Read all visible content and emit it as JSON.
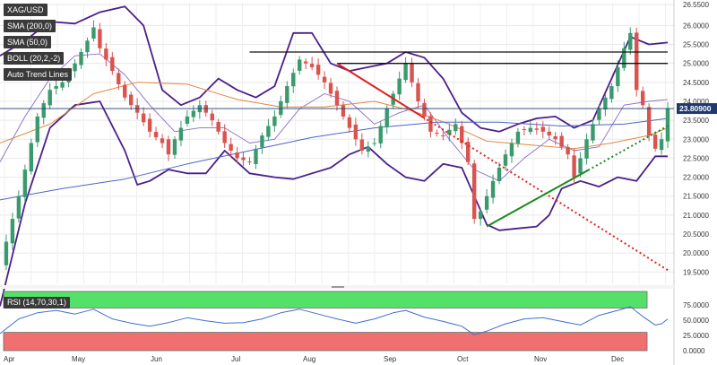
{
  "legend": {
    "symbol": "XAG/USD",
    "sma200": "SMA (200,0)",
    "sma50": "SMA (50,0)",
    "boll": "BOLL (20,2,-2)",
    "trend": "Auto Trend Lines"
  },
  "rsi": {
    "label": "RSI (14,70,30,1)"
  },
  "colors": {
    "up": "#3a9a6e",
    "down": "#d9534f",
    "boll": "#4b1f8a",
    "sma200": "#4b64c8",
    "sma50": "#e08a40",
    "rsi_line": "#3f6fd0",
    "rsi_overbought": "#55e06a",
    "rsi_oversold": "#f07070",
    "resistance": "#111111",
    "down_trend": "#e02020",
    "up_trend": "#1a8a1a",
    "price_badge": "#1f3a6e"
  },
  "chart_data": {
    "type": "line",
    "title": "XAG/USD",
    "x_ticks": [
      "Apr",
      "May",
      "Jun",
      "Jul",
      "Aug",
      "Sep",
      "Oct",
      "Nov",
      "Dec"
    ],
    "y_ticks": [
      "26.5500",
      "26.0000",
      "25.5000",
      "25.0000",
      "24.5000",
      "24.0000",
      "23.5000",
      "23.0000",
      "22.5000",
      "22.0000",
      "21.5000",
      "21.0000",
      "20.5000",
      "20.0000",
      "19.5000"
    ],
    "ylim": [
      19.2,
      26.6
    ],
    "last_price": "23.80900",
    "rsi_ticks": [
      "75.0000",
      "50.0000",
      "25.0000",
      "0.0000"
    ],
    "rsi_ylim": [
      0,
      100
    ],
    "rsi_levels": {
      "overbought": 70,
      "oversold": 30
    },
    "price_path": [
      [
        0,
        19.7
      ],
      [
        3,
        21.5
      ],
      [
        6,
        23.6
      ],
      [
        8,
        24.3
      ],
      [
        10,
        24.5
      ],
      [
        12,
        25.0
      ],
      [
        14,
        25.6
      ],
      [
        15,
        25.95
      ],
      [
        16,
        25.4
      ],
      [
        18,
        24.8
      ],
      [
        20,
        24.1
      ],
      [
        22,
        23.7
      ],
      [
        24,
        23.2
      ],
      [
        26,
        22.9
      ],
      [
        27,
        22.6
      ],
      [
        28,
        23.0
      ],
      [
        30,
        23.6
      ],
      [
        32,
        23.9
      ],
      [
        34,
        23.5
      ],
      [
        36,
        22.9
      ],
      [
        38,
        22.5
      ],
      [
        40,
        22.4
      ],
      [
        42,
        23.1
      ],
      [
        44,
        23.6
      ],
      [
        46,
        24.4
      ],
      [
        48,
        25.1
      ],
      [
        50,
        24.9
      ],
      [
        52,
        24.5
      ],
      [
        54,
        23.9
      ],
      [
        56,
        23.3
      ],
      [
        58,
        22.7
      ],
      [
        60,
        22.9
      ],
      [
        62,
        23.8
      ],
      [
        64,
        24.6
      ],
      [
        65,
        25.0
      ],
      [
        67,
        24.0
      ],
      [
        69,
        23.2
      ],
      [
        71,
        23.1
      ],
      [
        73,
        23.4
      ],
      [
        75,
        22.4
      ],
      [
        76,
        20.9
      ],
      [
        77,
        21.1
      ],
      [
        79,
        21.9
      ],
      [
        81,
        22.6
      ],
      [
        83,
        23.2
      ],
      [
        85,
        23.3
      ],
      [
        87,
        23.2
      ],
      [
        89,
        23.0
      ],
      [
        91,
        22.6
      ],
      [
        92,
        22.0
      ],
      [
        94,
        23.0
      ],
      [
        96,
        23.8
      ],
      [
        98,
        24.4
      ],
      [
        100,
        25.4
      ],
      [
        101,
        25.8
      ],
      [
        102,
        24.3
      ],
      [
        103,
        23.9
      ],
      [
        104,
        23.1
      ],
      [
        105,
        22.75
      ],
      [
        106,
        23.0
      ],
      [
        107,
        23.81
      ]
    ],
    "sma200_path": [
      [
        0,
        21.4
      ],
      [
        10,
        21.7
      ],
      [
        20,
        21.95
      ],
      [
        30,
        22.35
      ],
      [
        40,
        22.7
      ],
      [
        50,
        23.05
      ],
      [
        60,
        23.3
      ],
      [
        70,
        23.45
      ],
      [
        80,
        23.45
      ],
      [
        90,
        23.35
      ],
      [
        100,
        23.4
      ],
      [
        107,
        23.55
      ]
    ],
    "sma50_path": [
      [
        0,
        22.9
      ],
      [
        8,
        23.4
      ],
      [
        15,
        24.2
      ],
      [
        22,
        24.5
      ],
      [
        30,
        24.45
      ],
      [
        38,
        24.05
      ],
      [
        45,
        23.85
      ],
      [
        52,
        23.85
      ],
      [
        60,
        24.0
      ],
      [
        66,
        23.75
      ],
      [
        72,
        23.4
      ],
      [
        78,
        22.95
      ],
      [
        85,
        22.85
      ],
      [
        92,
        22.75
      ],
      [
        98,
        22.9
      ],
      [
        104,
        23.1
      ],
      [
        107,
        23.3
      ]
    ],
    "boll_upper_path": [
      [
        0,
        25.2
      ],
      [
        4,
        25.6
      ],
      [
        8,
        26.1
      ],
      [
        12,
        26.05
      ],
      [
        16,
        26.35
      ],
      [
        20,
        26.5
      ],
      [
        23,
        26.0
      ],
      [
        26,
        24.3
      ],
      [
        29,
        23.9
      ],
      [
        32,
        24.1
      ],
      [
        35,
        24.6
      ],
      [
        38,
        24.3
      ],
      [
        41,
        24.1
      ],
      [
        44,
        24.4
      ],
      [
        47,
        25.8
      ],
      [
        50,
        25.8
      ],
      [
        53,
        25.0
      ],
      [
        56,
        24.8
      ],
      [
        59,
        24.9
      ],
      [
        62,
        25.0
      ],
      [
        65,
        25.3
      ],
      [
        68,
        25.15
      ],
      [
        71,
        24.6
      ],
      [
        74,
        23.7
      ],
      [
        77,
        23.3
      ],
      [
        80,
        23.2
      ],
      [
        83,
        23.4
      ],
      [
        86,
        23.55
      ],
      [
        89,
        23.6
      ],
      [
        92,
        23.3
      ],
      [
        95,
        23.5
      ],
      [
        98,
        24.6
      ],
      [
        101,
        25.7
      ],
      [
        104,
        25.5
      ],
      [
        107,
        25.55
      ]
    ],
    "boll_middle_path": [
      [
        0,
        22.4
      ],
      [
        4,
        23.6
      ],
      [
        8,
        24.6
      ],
      [
        12,
        25.2
      ],
      [
        16,
        25.25
      ],
      [
        20,
        24.7
      ],
      [
        24,
        23.9
      ],
      [
        28,
        23.2
      ],
      [
        32,
        23.3
      ],
      [
        36,
        23.3
      ],
      [
        40,
        22.9
      ],
      [
        44,
        23.0
      ],
      [
        48,
        23.8
      ],
      [
        52,
        24.2
      ],
      [
        56,
        24.0
      ],
      [
        60,
        23.4
      ],
      [
        64,
        23.7
      ],
      [
        68,
        23.9
      ],
      [
        72,
        23.0
      ],
      [
        76,
        22.2
      ],
      [
        80,
        21.9
      ],
      [
        84,
        22.5
      ],
      [
        88,
        23.0
      ],
      [
        92,
        22.7
      ],
      [
        96,
        22.8
      ],
      [
        100,
        23.9
      ],
      [
        104,
        24.0
      ],
      [
        107,
        24.05
      ]
    ],
    "boll_lower_path": [
      [
        0,
        18.6
      ],
      [
        4,
        21.3
      ],
      [
        8,
        23.3
      ],
      [
        12,
        23.9
      ],
      [
        16,
        24.0
      ],
      [
        20,
        22.7
      ],
      [
        22,
        21.8
      ],
      [
        24,
        21.9
      ],
      [
        27,
        22.2
      ],
      [
        30,
        22.1
      ],
      [
        33,
        22.1
      ],
      [
        36,
        22.7
      ],
      [
        40,
        22.1
      ],
      [
        44,
        22.0
      ],
      [
        47,
        21.95
      ],
      [
        50,
        22.1
      ],
      [
        53,
        22.25
      ],
      [
        56,
        22.6
      ],
      [
        59,
        22.8
      ],
      [
        62,
        22.35
      ],
      [
        65,
        22.0
      ],
      [
        68,
        21.9
      ],
      [
        71,
        22.35
      ],
      [
        74,
        22.25
      ],
      [
        76,
        21.5
      ],
      [
        78,
        20.75
      ],
      [
        80,
        20.6
      ],
      [
        83,
        20.65
      ],
      [
        86,
        20.7
      ],
      [
        88,
        21.0
      ],
      [
        90,
        21.7
      ],
      [
        93,
        21.9
      ],
      [
        96,
        21.75
      ],
      [
        99,
        22.0
      ],
      [
        102,
        21.9
      ],
      [
        105,
        22.55
      ],
      [
        107,
        22.55
      ]
    ],
    "rsi_path": [
      [
        0,
        28
      ],
      [
        3,
        52
      ],
      [
        6,
        62
      ],
      [
        9,
        66
      ],
      [
        12,
        60
      ],
      [
        15,
        68
      ],
      [
        18,
        52
      ],
      [
        21,
        45
      ],
      [
        24,
        40
      ],
      [
        27,
        46
      ],
      [
        30,
        54
      ],
      [
        33,
        49
      ],
      [
        36,
        45
      ],
      [
        39,
        46
      ],
      [
        42,
        52
      ],
      [
        45,
        62
      ],
      [
        48,
        68
      ],
      [
        51,
        60
      ],
      [
        54,
        52
      ],
      [
        57,
        45
      ],
      [
        60,
        52
      ],
      [
        63,
        62
      ],
      [
        65,
        66
      ],
      [
        68,
        55
      ],
      [
        71,
        48
      ],
      [
        74,
        40
      ],
      [
        76,
        26
      ],
      [
        78,
        32
      ],
      [
        81,
        44
      ],
      [
        84,
        52
      ],
      [
        87,
        54
      ],
      [
        90,
        48
      ],
      [
        93,
        42
      ],
      [
        96,
        58
      ],
      [
        99,
        66
      ],
      [
        101,
        72
      ],
      [
        103,
        56
      ],
      [
        105,
        42
      ],
      [
        106,
        44
      ],
      [
        107,
        52
      ]
    ],
    "resistance_lines": [
      {
        "x": [
          40,
          107
        ],
        "y": 25.3
      },
      {
        "x": [
          54,
          107
        ],
        "y": 25.0
      }
    ],
    "trend_lines": [
      {
        "kind": "down",
        "x": [
          54,
          107
        ],
        "y": [
          25.0,
          19.55
        ]
      },
      {
        "kind": "up",
        "x": [
          78,
          107
        ],
        "y": [
          20.7,
          23.35
        ]
      }
    ]
  }
}
